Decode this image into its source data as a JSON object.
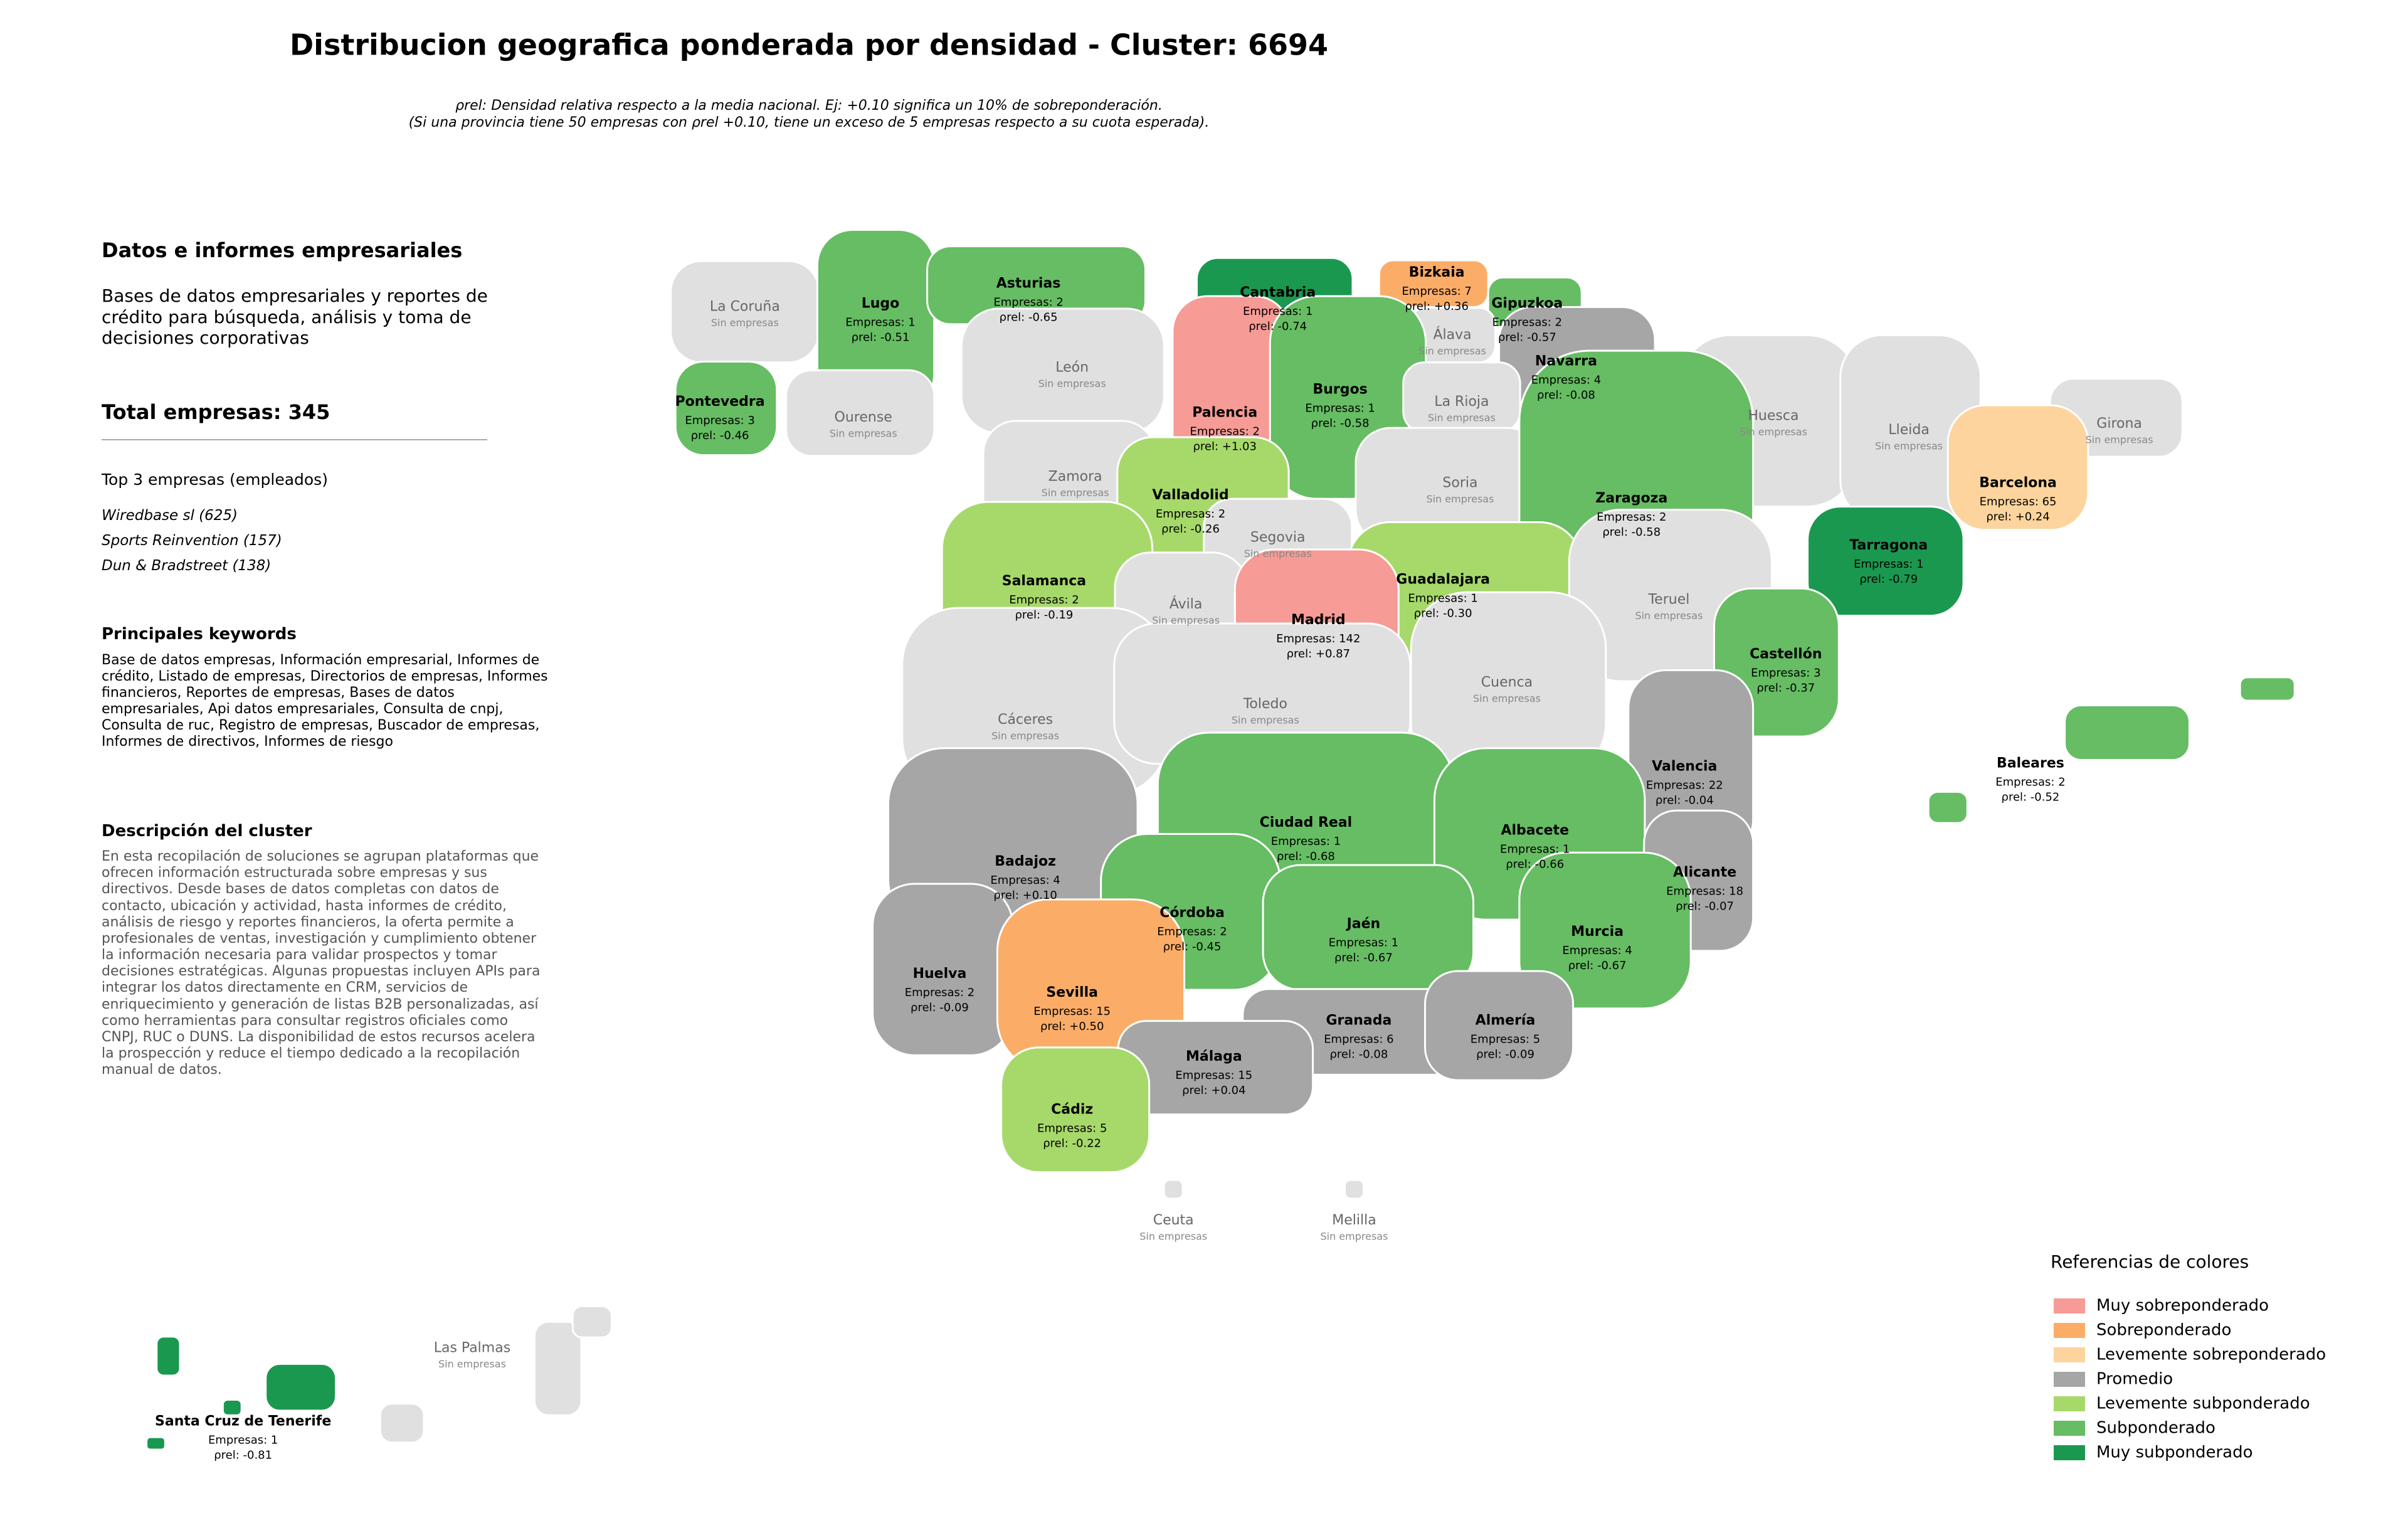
{
  "title": "Distribucion geografica ponderada por densidad - Cluster: 6694",
  "subtitle": [
    "ρrel: Densidad relativa respecto a la media nacional. Ej: +0.10 significa un 10% de sobreponderación.",
    "(Si una provincia tiene 50 empresas con ρrel +0.10, tiene un exceso de 5 empresas respecto a su cuota esperada)."
  ],
  "sidebar": {
    "heading": "Datos e informes empresariales",
    "description": "Bases de datos empresariales y reportes de crédito para búsqueda, análisis y toma de decisiones corporativas",
    "total": "Total empresas: 345",
    "top_title": "Top 3 empresas (empleados)",
    "top": [
      "Wiredbase sl (625)",
      "Sports Reinvention (157)",
      "Dun & Bradstreet (138)"
    ],
    "keywords_title": "Principales keywords",
    "keywords": "Base de datos empresas, Información empresarial, Informes de crédito, Listado de empresas, Directorios de empresas, Informes financieros, Reportes de empresas, Bases de datos empresariales, Api datos empresariales, Consulta de cnpj, Consulta de ruc, Registro de empresas, Buscador de empresas, Informes de directivos, Informes de riesgo",
    "cluster_title": "Descripción del cluster",
    "cluster_text": "En esta recopilación de soluciones se agrupan plataformas que ofrecen información estructurada sobre empresas y sus directivos. Desde bases de datos completas con datos de contacto, ubicación y actividad, hasta informes de crédito, análisis de riesgo y reportes financieros, la oferta permite a profesionales de ventas, investigación y cumplimiento obtener la información necesaria para validar prospectos y tomar decisiones estratégicas. Algunas propuestas incluyen APIs para integrar los datos directamente en CRM, servicios de enriquecimiento y generación de listas B2B personalizadas, así como herramientas para consultar registros oficiales como CNPJ, RUC o DUNS. La disponibilidad de estos recursos acelera la prospección y reduce el tiempo dedicado a la recopilación manual de datos."
  },
  "empty_color": "#e0e0e0",
  "legend": {
    "title": "Referencias de colores",
    "items": [
      {
        "name": "Muy sobreponderado",
        "color": "#f69b95"
      },
      {
        "name": "Sobreponderado",
        "color": "#fbad68"
      },
      {
        "name": "Levemente sobreponderado",
        "color": "#fdd49d"
      },
      {
        "name": "Promedio",
        "color": "#a6a6a6"
      },
      {
        "name": "Levemente subponderado",
        "color": "#a6d96a"
      },
      {
        "name": "Subponderado",
        "color": "#66bd63"
      },
      {
        "name": "Muy subponderado",
        "color": "#1a9850"
      }
    ]
  },
  "provinces": [
    {
      "name": "La Coruña",
      "companies": "Sin empresas"
    },
    {
      "name": "Lugo",
      "companies": "Empresas: 1",
      "rho": "ρrel: -0.51",
      "level": 5
    },
    {
      "name": "Asturias",
      "companies": "Empresas: 2",
      "rho": "ρrel: -0.65",
      "level": 5
    },
    {
      "name": "Cantabria",
      "companies": "Empresas: 1",
      "rho": "ρrel: -0.74",
      "level": 6
    },
    {
      "name": "Bizkaia",
      "companies": "Empresas: 7",
      "rho": "ρrel: +0.36",
      "level": 1
    },
    {
      "name": "Gipuzkoa",
      "companies": "Empresas: 2",
      "rho": "ρrel: -0.57",
      "level": 5
    },
    {
      "name": "Álava",
      "companies": "Sin empresas"
    },
    {
      "name": "Navarra",
      "companies": "Empresas: 4",
      "rho": "ρrel: -0.08",
      "level": 3
    },
    {
      "name": "Pontevedra",
      "companies": "Empresas: 3",
      "rho": "ρrel: -0.46",
      "level": 5
    },
    {
      "name": "Ourense",
      "companies": "Sin empresas"
    },
    {
      "name": "León",
      "companies": "Sin empresas"
    },
    {
      "name": "Palencia",
      "companies": "Empresas: 2",
      "rho": "ρrel: +1.03",
      "level": 0
    },
    {
      "name": "Burgos",
      "companies": "Empresas: 1",
      "rho": "ρrel: -0.58",
      "level": 5
    },
    {
      "name": "La Rioja",
      "companies": "Sin empresas"
    },
    {
      "name": "Huesca",
      "companies": "Sin empresas"
    },
    {
      "name": "Lleida",
      "companies": "Sin empresas"
    },
    {
      "name": "Girona",
      "companies": "Sin empresas"
    },
    {
      "name": "Zamora",
      "companies": "Sin empresas"
    },
    {
      "name": "Valladolid",
      "companies": "Empresas: 2",
      "rho": "ρrel: -0.26",
      "level": 4
    },
    {
      "name": "Soria",
      "companies": "Sin empresas"
    },
    {
      "name": "Zaragoza",
      "companies": "Empresas: 2",
      "rho": "ρrel: -0.58",
      "level": 5
    },
    {
      "name": "Barcelona",
      "companies": "Empresas: 65",
      "rho": "ρrel: +0.24",
      "level": 2
    },
    {
      "name": "Segovia",
      "companies": "Sin empresas"
    },
    {
      "name": "Salamanca",
      "companies": "Empresas: 2",
      "rho": "ρrel: -0.19",
      "level": 4
    },
    {
      "name": "Guadalajara",
      "companies": "Empresas: 1",
      "rho": "ρrel: -0.30",
      "level": 4
    },
    {
      "name": "Tarragona",
      "companies": "Empresas: 1",
      "rho": "ρrel: -0.79",
      "level": 6
    },
    {
      "name": "Ávila",
      "companies": "Sin empresas"
    },
    {
      "name": "Madrid",
      "companies": "Empresas: 142",
      "rho": "ρrel: +0.87",
      "level": 0
    },
    {
      "name": "Teruel",
      "companies": "Sin empresas"
    },
    {
      "name": "Castellón",
      "companies": "Empresas: 3",
      "rho": "ρrel: -0.37",
      "level": 5
    },
    {
      "name": "Cáceres",
      "companies": "Sin empresas"
    },
    {
      "name": "Toledo",
      "companies": "Sin empresas"
    },
    {
      "name": "Cuenca",
      "companies": "Sin empresas"
    },
    {
      "name": "Valencia",
      "companies": "Empresas: 22",
      "rho": "ρrel: -0.04",
      "level": 3
    },
    {
      "name": "Baleares",
      "companies": "Empresas: 2",
      "rho": "ρrel: -0.52",
      "level": 5
    },
    {
      "name": "Badajoz",
      "companies": "Empresas: 4",
      "rho": "ρrel: +0.10",
      "level": 3
    },
    {
      "name": "Ciudad Real",
      "companies": "Empresas: 1",
      "rho": "ρrel: -0.68",
      "level": 5
    },
    {
      "name": "Albacete",
      "companies": "Empresas: 1",
      "rho": "ρrel: -0.66",
      "level": 5
    },
    {
      "name": "Alicante",
      "companies": "Empresas: 18",
      "rho": "ρrel: -0.07",
      "level": 3
    },
    {
      "name": "Córdoba",
      "companies": "Empresas: 2",
      "rho": "ρrel: -0.45",
      "level": 5
    },
    {
      "name": "Jaén",
      "companies": "Empresas: 1",
      "rho": "ρrel: -0.67",
      "level": 5
    },
    {
      "name": "Murcia",
      "companies": "Empresas: 4",
      "rho": "ρrel: -0.67",
      "level": 5
    },
    {
      "name": "Huelva",
      "companies": "Empresas: 2",
      "rho": "ρrel: -0.09",
      "level": 3
    },
    {
      "name": "Sevilla",
      "companies": "Empresas: 15",
      "rho": "ρrel: +0.50",
      "level": 1
    },
    {
      "name": "Granada",
      "companies": "Empresas: 6",
      "rho": "ρrel: -0.08",
      "level": 3
    },
    {
      "name": "Almería",
      "companies": "Empresas: 5",
      "rho": "ρrel: -0.09",
      "level": 3
    },
    {
      "name": "Málaga",
      "companies": "Empresas: 15",
      "rho": "ρrel: +0.04",
      "level": 3
    },
    {
      "name": "Cádiz",
      "companies": "Empresas: 5",
      "rho": "ρrel: -0.22",
      "level": 4
    },
    {
      "name": "Ceuta",
      "companies": "Sin empresas"
    },
    {
      "name": "Melilla",
      "companies": "Sin empresas"
    },
    {
      "name": "Las Palmas",
      "companies": "Sin empresas"
    },
    {
      "name": "Santa Cruz de Tenerife",
      "companies": "Empresas: 1",
      "rho": "ρrel: -0.81",
      "level": 6
    }
  ]
}
